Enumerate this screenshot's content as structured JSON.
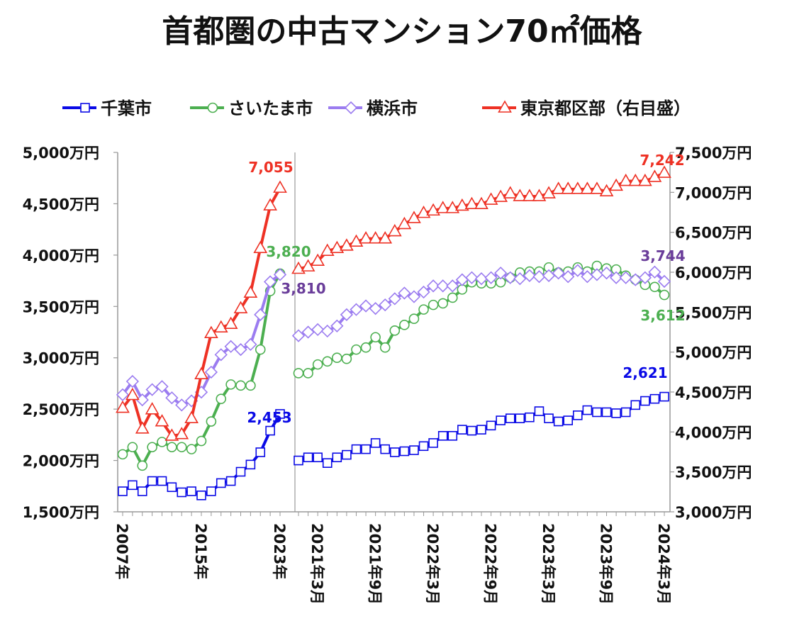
{
  "chart_data": {
    "type": "line",
    "title": "首都圏の中古マンション70㎡価格",
    "legend_placement": "top",
    "left_axis": {
      "ticks": [
        "1,500万円",
        "2,000万円",
        "2,500万円",
        "3,000万円",
        "3,500万円",
        "4,000万円",
        "4,500万円",
        "5,000万円"
      ],
      "range": [
        1500,
        5000
      ]
    },
    "right_axis": {
      "ticks": [
        "3,000万円",
        "3,500万円",
        "4,000万円",
        "4,500万円",
        "5,000万円",
        "5,500万円",
        "6,000万円",
        "6,500万円",
        "7,000万円",
        "7,500万円"
      ],
      "range": [
        3000,
        7500
      ]
    },
    "annual_x": [
      "2007",
      "2008",
      "2009",
      "2010",
      "2011",
      "2012",
      "2013",
      "2014",
      "2015",
      "2016",
      "2017",
      "2018",
      "2019",
      "2020",
      "2021",
      "2022",
      "2023"
    ],
    "annual_tick_labels": [
      "2007年",
      "2015年",
      "2023年"
    ],
    "monthly_x_start": "2021-01",
    "monthly_x_end": "2024-03",
    "monthly_tick_labels": [
      "2021年3月",
      "2021年9月",
      "2022年3月",
      "2022年9月",
      "2023年3月",
      "2023年9月",
      "2024年3月"
    ],
    "series": [
      {
        "name": "千葉市",
        "axis": "left",
        "color": "#0a0ae6",
        "marker": "square",
        "annual": [
          1700,
          1760,
          1700,
          1800,
          1800,
          1740,
          1690,
          1700,
          1660,
          1700,
          1780,
          1800,
          1890,
          1960,
          2080,
          2290,
          2453
        ],
        "monthly": [
          2000,
          2030,
          2030,
          1975,
          2030,
          2055,
          2110,
          2110,
          2170,
          2110,
          2080,
          2090,
          2100,
          2140,
          2170,
          2240,
          2240,
          2300,
          2290,
          2300,
          2340,
          2390,
          2410,
          2410,
          2420,
          2480,
          2410,
          2380,
          2390,
          2440,
          2490,
          2470,
          2470,
          2460,
          2470,
          2540,
          2580,
          2600,
          2621
        ],
        "labels": [
          "2,453",
          "2,621"
        ],
        "label_color": "#0a0ae6"
      },
      {
        "name": "さいたま市",
        "axis": "left",
        "color": "#4caf50",
        "marker": "circle",
        "annual": [
          2060,
          2130,
          1950,
          2130,
          2180,
          2130,
          2130,
          2110,
          2190,
          2380,
          2600,
          2740,
          2730,
          2730,
          3080,
          3650,
          3820
        ],
        "monthly": [
          2850,
          2850,
          2935,
          2965,
          3000,
          2990,
          3080,
          3100,
          3200,
          3100,
          3265,
          3320,
          3380,
          3470,
          3515,
          3530,
          3585,
          3665,
          3735,
          3725,
          3725,
          3735,
          3780,
          3830,
          3840,
          3840,
          3880,
          3830,
          3840,
          3880,
          3840,
          3895,
          3870,
          3860,
          3800,
          3760,
          3710,
          3690,
          3612
        ],
        "labels": [
          "3,820",
          "3,612"
        ],
        "label_color": "#4caf50"
      },
      {
        "name": "横浜市",
        "axis": "left",
        "color": "#9b7cf0",
        "marker": "diamond",
        "annual": [
          2640,
          2770,
          2590,
          2690,
          2720,
          2610,
          2540,
          2580,
          2665,
          2860,
          3030,
          3110,
          3080,
          3130,
          3420,
          3740,
          3810
        ],
        "monthly": [
          3215,
          3250,
          3275,
          3260,
          3310,
          3420,
          3470,
          3505,
          3480,
          3515,
          3575,
          3630,
          3595,
          3640,
          3700,
          3700,
          3700,
          3760,
          3780,
          3770,
          3780,
          3825,
          3780,
          3770,
          3800,
          3790,
          3800,
          3825,
          3790,
          3850,
          3790,
          3810,
          3825,
          3780,
          3780,
          3760,
          3780,
          3835,
          3744
        ],
        "labels": [
          "3,810",
          "3,744"
        ],
        "label_color": "#6a3d9a"
      },
      {
        "name": "東京都区部（右目盛）",
        "axis": "right",
        "color": "#ee3124",
        "marker": "triangle",
        "annual": [
          4300,
          4460,
          4040,
          4280,
          4130,
          3950,
          3970,
          4170,
          4720,
          5235,
          5306,
          5350,
          5546,
          5741,
          6300,
          6834,
          7055
        ],
        "monthly": [
          6040,
          6070,
          6140,
          6265,
          6300,
          6330,
          6380,
          6420,
          6420,
          6420,
          6510,
          6600,
          6675,
          6740,
          6770,
          6800,
          6800,
          6830,
          6850,
          6850,
          6905,
          6940,
          6985,
          6950,
          6950,
          6950,
          6985,
          7040,
          7040,
          7040,
          7040,
          7040,
          7010,
          7080,
          7140,
          7140,
          7140,
          7190,
          7242
        ],
        "labels": [
          "7,055",
          "7,242"
        ],
        "label_color": "#ee3124"
      }
    ]
  }
}
